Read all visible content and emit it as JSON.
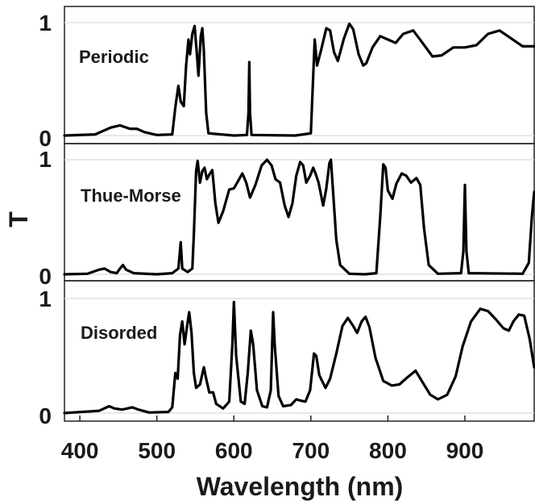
{
  "figure": {
    "ylabel": "T",
    "xlabel": "Wavelength (nm)",
    "line_color": "#000000",
    "grid_color": "#d9d9d9"
  },
  "chart_data": {
    "type": "line",
    "xlabel": "Wavelength (nm)",
    "ylabel": "T",
    "xlim": [
      380,
      990
    ],
    "x_ticks": [
      400,
      500,
      600,
      700,
      800,
      900
    ],
    "grid": "horizontal lines at y = 1 and y = 0",
    "panels": [
      {
        "series": [
          {
            "name": "Periodic",
            "points": [
              [
                380,
                0
              ],
              [
                420,
                0.01
              ],
              [
                440,
                0.07
              ],
              [
                452,
                0.09
              ],
              [
                465,
                0.06
              ],
              [
                474,
                0.06
              ],
              [
                484,
                0.03
              ],
              [
                500,
                0.005
              ],
              [
                520,
                0.01
              ],
              [
                524,
                0.25
              ],
              [
                528,
                0.44
              ],
              [
                531,
                0.3
              ],
              [
                535,
                0.26
              ],
              [
                538,
                0.62
              ],
              [
                541,
                0.85
              ],
              [
                543,
                0.72
              ],
              [
                546,
                0.9
              ],
              [
                549,
                0.97
              ],
              [
                552,
                0.72
              ],
              [
                554,
                0.53
              ],
              [
                557,
                0.88
              ],
              [
                559,
                0.95
              ],
              [
                561,
                0.75
              ],
              [
                564,
                0.2
              ],
              [
                567,
                0.02
              ],
              [
                600,
                0
              ],
              [
                617,
                0.005
              ],
              [
                619,
                0.2
              ],
              [
                620,
                0.65
              ],
              [
                621,
                0.2
              ],
              [
                623,
                0.005
              ],
              [
                680,
                0
              ],
              [
                700,
                0.02
              ],
              [
                702,
                0.35
              ],
              [
                705,
                0.85
              ],
              [
                708,
                0.62
              ],
              [
                713,
                0.75
              ],
              [
                720,
                0.95
              ],
              [
                725,
                0.93
              ],
              [
                730,
                0.74
              ],
              [
                735,
                0.66
              ],
              [
                743,
                0.86
              ],
              [
                750,
                0.99
              ],
              [
                755,
                0.94
              ],
              [
                762,
                0.72
              ],
              [
                768,
                0.62
              ],
              [
                772,
                0.64
              ],
              [
                780,
                0.78
              ],
              [
                790,
                0.88
              ],
              [
                800,
                0.85
              ],
              [
                810,
                0.82
              ],
              [
                820,
                0.9
              ],
              [
                833,
                0.93
              ],
              [
                845,
                0.82
              ],
              [
                858,
                0.7
              ],
              [
                870,
                0.71
              ],
              [
                885,
                0.78
              ],
              [
                900,
                0.78
              ],
              [
                915,
                0.8
              ],
              [
                930,
                0.9
              ],
              [
                945,
                0.93
              ],
              [
                960,
                0.86
              ],
              [
                975,
                0.79
              ],
              [
                990,
                0.79
              ]
            ]
          }
        ]
      },
      {
        "series": [
          {
            "name": "Thue-Morse",
            "points": [
              [
                380,
                0
              ],
              [
                410,
                0.005
              ],
              [
                425,
                0.04
              ],
              [
                432,
                0.05
              ],
              [
                440,
                0.02
              ],
              [
                448,
                0.01
              ],
              [
                452,
                0.05
              ],
              [
                456,
                0.08
              ],
              [
                460,
                0.04
              ],
              [
                470,
                0.01
              ],
              [
                500,
                0
              ],
              [
                520,
                0.01
              ],
              [
                528,
                0.05
              ],
              [
                531,
                0.28
              ],
              [
                533,
                0.05
              ],
              [
                540,
                0.02
              ],
              [
                546,
                0.05
              ],
              [
                548,
                0.35
              ],
              [
                551,
                0.9
              ],
              [
                553,
                0.99
              ],
              [
                556,
                0.8
              ],
              [
                559,
                0.9
              ],
              [
                562,
                0.93
              ],
              [
                565,
                0.83
              ],
              [
                569,
                0.88
              ],
              [
                572,
                0.91
              ],
              [
                576,
                0.62
              ],
              [
                580,
                0.45
              ],
              [
                586,
                0.55
              ],
              [
                594,
                0.74
              ],
              [
                600,
                0.75
              ],
              [
                606,
                0.82
              ],
              [
                611,
                0.88
              ],
              [
                616,
                0.8
              ],
              [
                621,
                0.67
              ],
              [
                628,
                0.78
              ],
              [
                636,
                0.95
              ],
              [
                643,
                1.0
              ],
              [
                649,
                0.95
              ],
              [
                654,
                0.83
              ],
              [
                660,
                0.8
              ],
              [
                666,
                0.6
              ],
              [
                671,
                0.5
              ],
              [
                676,
                0.62
              ],
              [
                681,
                0.86
              ],
              [
                686,
                0.98
              ],
              [
                690,
                0.95
              ],
              [
                694,
                0.8
              ],
              [
                699,
                0.86
              ],
              [
                703,
                0.93
              ],
              [
                706,
                0.88
              ],
              [
                710,
                0.8
              ],
              [
                716,
                0.6
              ],
              [
                720,
                0.75
              ],
              [
                724,
                0.97
              ],
              [
                726,
                1.0
              ],
              [
                729,
                0.7
              ],
              [
                733,
                0.3
              ],
              [
                738,
                0.08
              ],
              [
                750,
                0.005
              ],
              [
                770,
                0
              ],
              [
                785,
                0.01
              ],
              [
                790,
                0.5
              ],
              [
                794,
                0.96
              ],
              [
                797,
                0.93
              ],
              [
                800,
                0.73
              ],
              [
                806,
                0.66
              ],
              [
                811,
                0.79
              ],
              [
                818,
                0.88
              ],
              [
                824,
                0.86
              ],
              [
                830,
                0.8
              ],
              [
                837,
                0.84
              ],
              [
                842,
                0.78
              ],
              [
                847,
                0.4
              ],
              [
                853,
                0.08
              ],
              [
                865,
                0.005
              ],
              [
                895,
                0.01
              ],
              [
                898,
                0.2
              ],
              [
                900,
                0.78
              ],
              [
                902,
                0.2
              ],
              [
                905,
                0.01
              ],
              [
                975,
                0.005
              ],
              [
                983,
                0.1
              ],
              [
                987,
                0.5
              ],
              [
                990,
                0.72
              ]
            ]
          }
        ]
      },
      {
        "series": [
          {
            "name": "Disorded",
            "points": [
              [
                380,
                0
              ],
              [
                425,
                0.02
              ],
              [
                438,
                0.06
              ],
              [
                445,
                0.04
              ],
              [
                455,
                0.03
              ],
              [
                468,
                0.05
              ],
              [
                476,
                0.03
              ],
              [
                490,
                0.005
              ],
              [
                515,
                0.01
              ],
              [
                520,
                0.05
              ],
              [
                524,
                0.35
              ],
              [
                527,
                0.3
              ],
              [
                530,
                0.68
              ],
              [
                533,
                0.8
              ],
              [
                536,
                0.6
              ],
              [
                539,
                0.75
              ],
              [
                542,
                0.88
              ],
              [
                545,
                0.7
              ],
              [
                548,
                0.35
              ],
              [
                551,
                0.22
              ],
              [
                556,
                0.25
              ],
              [
                561,
                0.4
              ],
              [
                564,
                0.3
              ],
              [
                568,
                0.18
              ],
              [
                573,
                0.18
              ],
              [
                577,
                0.08
              ],
              [
                586,
                0.04
              ],
              [
                594,
                0.1
              ],
              [
                598,
                0.6
              ],
              [
                600,
                0.97
              ],
              [
                603,
                0.5
              ],
              [
                609,
                0.1
              ],
              [
                614,
                0.08
              ],
              [
                618,
                0.35
              ],
              [
                622,
                0.72
              ],
              [
                625,
                0.6
              ],
              [
                630,
                0.2
              ],
              [
                637,
                0.06
              ],
              [
                643,
                0.05
              ],
              [
                648,
                0.2
              ],
              [
                651,
                0.88
              ],
              [
                653,
                0.6
              ],
              [
                658,
                0.15
              ],
              [
                664,
                0.06
              ],
              [
                674,
                0.07
              ],
              [
                681,
                0.12
              ],
              [
                686,
                0.11
              ],
              [
                693,
                0.1
              ],
              [
                699,
                0.2
              ],
              [
                704,
                0.52
              ],
              [
                707,
                0.5
              ],
              [
                711,
                0.33
              ],
              [
                719,
                0.22
              ],
              [
                725,
                0.3
              ],
              [
                733,
                0.52
              ],
              [
                741,
                0.76
              ],
              [
                748,
                0.83
              ],
              [
                755,
                0.76
              ],
              [
                760,
                0.7
              ],
              [
                766,
                0.8
              ],
              [
                771,
                0.84
              ],
              [
                776,
                0.75
              ],
              [
                784,
                0.48
              ],
              [
                794,
                0.28
              ],
              [
                805,
                0.24
              ],
              [
                815,
                0.25
              ],
              [
                825,
                0.31
              ],
              [
                836,
                0.37
              ],
              [
                845,
                0.27
              ],
              [
                855,
                0.16
              ],
              [
                865,
                0.12
              ],
              [
                877,
                0.16
              ],
              [
                888,
                0.32
              ],
              [
                897,
                0.58
              ],
              [
                908,
                0.8
              ],
              [
                920,
                0.91
              ],
              [
                930,
                0.89
              ],
              [
                940,
                0.82
              ],
              [
                950,
                0.74
              ],
              [
                957,
                0.72
              ],
              [
                963,
                0.8
              ],
              [
                970,
                0.86
              ],
              [
                977,
                0.85
              ],
              [
                984,
                0.65
              ],
              [
                990,
                0.4
              ]
            ]
          }
        ]
      }
    ]
  }
}
